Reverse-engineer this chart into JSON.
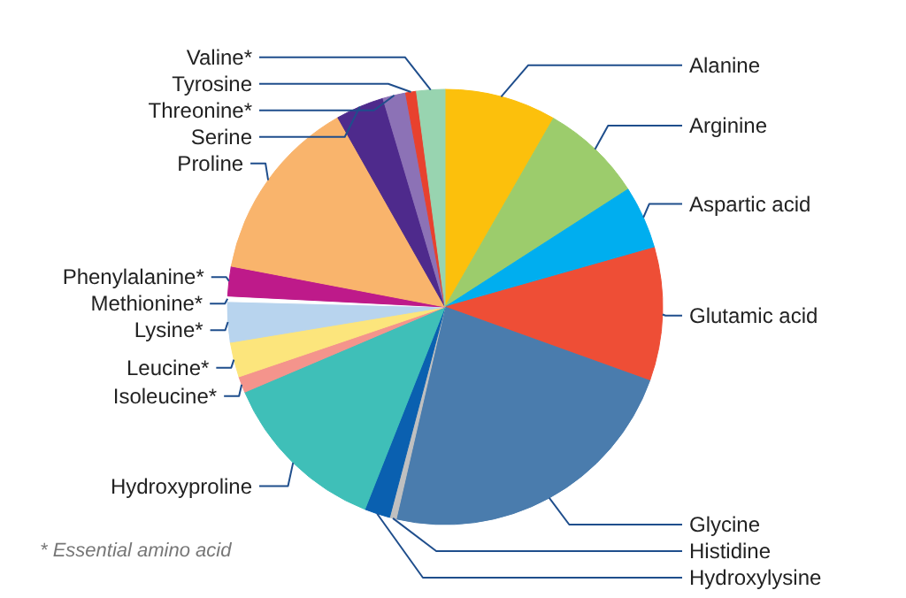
{
  "chart_data": {
    "type": "pie",
    "categories": [
      "Alanine",
      "Arginine",
      "Aspartic acid",
      "Glutamic acid",
      "Glycine",
      "Histidine",
      "Hydroxylysine",
      "Hydroxyproline",
      "Isoleucine*",
      "Leucine*",
      "Lysine*",
      "Methionine*",
      "Phenylalanine*",
      "Proline",
      "Serine",
      "Threonine*",
      "Tyrosine",
      "Valine*"
    ],
    "values": [
      8.3,
      7.6,
      4.7,
      9.9,
      23.1,
      0.5,
      1.9,
      12.6,
      1.2,
      2.6,
      3.0,
      0.4,
      2.2,
      13.8,
      3.6,
      1.7,
      0.8,
      2.1
    ],
    "colors": [
      "#fcc00c",
      "#9ccc6c",
      "#00aeef",
      "#ee4e36",
      "#4a7cad",
      "#c0c0c0",
      "#0a60b0",
      "#3fbfb8",
      "#f4948c",
      "#fce57c",
      "#b8d4ee",
      "#ffffff",
      "#be1a8a",
      "#f9b46c",
      "#4e2a8c",
      "#8c72b6",
      "#e8412e",
      "#98d4b0"
    ],
    "annotations": [
      "* Essential amino acid"
    ]
  }
}
